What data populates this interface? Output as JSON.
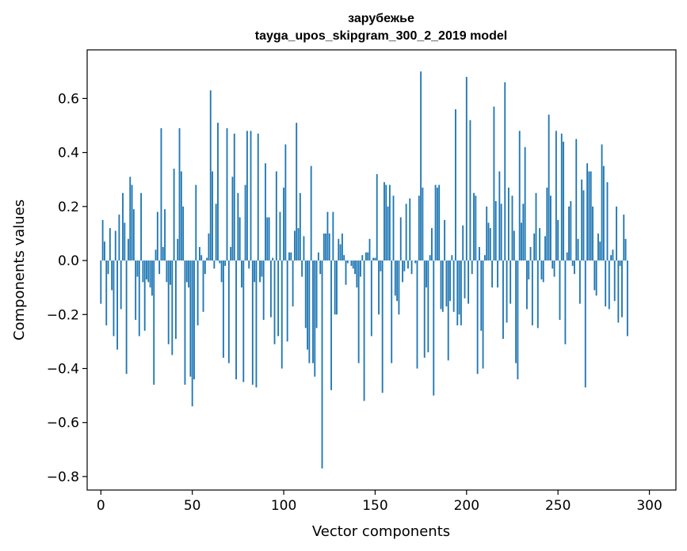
{
  "chart_data": {
    "type": "bar",
    "title": "зарубежье",
    "subtitle": "tayga_upos_skipgram_300_2_2019 model",
    "xlabel": "Vector components",
    "ylabel": "Components values",
    "xlim": [
      -7.5,
      314.5
    ],
    "ylim": [
      -0.85,
      0.78
    ],
    "xticks": [
      0,
      50,
      100,
      150,
      200,
      250,
      300
    ],
    "xtick_labels": [
      "0",
      "50",
      "100",
      "150",
      "200",
      "250",
      "300"
    ],
    "yticks": [
      -0.8,
      -0.6,
      -0.4,
      -0.2,
      0.0,
      0.2,
      0.4,
      0.6
    ],
    "ytick_labels": [
      "−0.8",
      "−0.6",
      "−0.4",
      "−0.2",
      "0.0",
      "0.2",
      "0.4",
      "0.6"
    ],
    "grid": false,
    "bar_color": "#1f77b4",
    "values": [
      -0.16,
      0.15,
      0.07,
      -0.24,
      -0.05,
      0.12,
      -0.11,
      -0.28,
      0.11,
      -0.33,
      0.17,
      -0.18,
      0.25,
      0.14,
      -0.42,
      0.08,
      0.31,
      0.28,
      0.19,
      -0.22,
      -0.06,
      -0.28,
      0.25,
      -0.08,
      -0.26,
      -0.07,
      -0.08,
      -0.1,
      -0.13,
      -0.46,
      0.04,
      0.18,
      -0.05,
      0.49,
      0.05,
      0.19,
      -0.08,
      -0.31,
      -0.09,
      -0.35,
      0.34,
      -0.29,
      0.08,
      0.49,
      0.33,
      0.2,
      -0.46,
      -0.08,
      -0.1,
      -0.43,
      -0.54,
      -0.44,
      0.28,
      -0.24,
      0.05,
      0.02,
      -0.19,
      -0.05,
      0.01,
      0.1,
      0.63,
      0.33,
      -0.03,
      0.21,
      0.51,
      -0.01,
      -0.08,
      -0.36,
      -0.02,
      0.49,
      -0.38,
      0.05,
      0.31,
      0.47,
      -0.44,
      0.25,
      0.16,
      -0.1,
      -0.45,
      0.28,
      0.48,
      -0.03,
      0.48,
      -0.46,
      -0.08,
      -0.47,
      0.47,
      -0.08,
      -0.06,
      -0.22,
      0.36,
      0.16,
      0.16,
      -0.21,
      0.01,
      -0.31,
      0.33,
      -0.28,
      0.18,
      -0.4,
      0.27,
      0.43,
      -0.3,
      0.03,
      0.03,
      -0.17,
      0.11,
      0.51,
      0.12,
      0.25,
      -0.06,
      0.09,
      -0.25,
      -0.33,
      -0.38,
      0.35,
      -0.38,
      -0.43,
      -0.25,
      0.03,
      -0.05,
      -0.77,
      0.1,
      0.1,
      0.18,
      0.1,
      -0.48,
      0.18,
      -0.2,
      -0.2,
      0.08,
      0.06,
      0.1,
      0.02,
      -0.09,
      -0.01,
      0.0,
      -0.02,
      -0.03,
      -0.05,
      -0.1,
      -0.38,
      -0.06,
      0.02,
      -0.52,
      0.03,
      0.03,
      0.08,
      -0.28,
      0.01,
      0.01,
      0.32,
      -0.2,
      -0.04,
      -0.49,
      0.29,
      0.28,
      0.2,
      0.28,
      -0.38,
      0.24,
      -0.13,
      -0.15,
      -0.2,
      0.16,
      -0.08,
      -0.04,
      0.21,
      -0.03,
      0.23,
      -0.05,
      0.0,
      -0.01,
      -0.4,
      0.24,
      0.7,
      0.27,
      -0.36,
      -0.1,
      -0.34,
      0.02,
      0.12,
      -0.5,
      0.28,
      0.27,
      0.28,
      -0.18,
      -0.19,
      0.15,
      -0.17,
      -0.37,
      -0.15,
      0.02,
      -0.19,
      0.56,
      -0.24,
      -0.2,
      -0.24,
      0.13,
      -0.14,
      0.68,
      -0.16,
      0.52,
      -0.05,
      0.25,
      0.24,
      -0.42,
      0.05,
      -0.26,
      -0.4,
      0.02,
      0.2,
      0.14,
      0.12,
      -0.1,
      0.57,
      0.22,
      -0.1,
      0.33,
      0.21,
      -0.29,
      0.66,
      -0.23,
      0.27,
      -0.16,
      0.24,
      0.11,
      -0.38,
      -0.44,
      0.48,
      0.14,
      0.21,
      0.42,
      -0.18,
      -0.07,
      0.05,
      -0.24,
      0.1,
      0.25,
      -0.25,
      0.12,
      -0.07,
      -0.08,
      0.09,
      0.27,
      0.54,
      0.24,
      -0.03,
      -0.06,
      0.48,
      0.15,
      -0.22,
      0.47,
      0.44,
      -0.31,
      0.03,
      0.2,
      0.22,
      -0.02,
      -0.05,
      0.45,
      0.08,
      -0.16,
      0.3,
      0.26,
      -0.47,
      0.36,
      0.33,
      0.33,
      0.2,
      -0.11,
      -0.13,
      0.1,
      0.07,
      0.43,
      0.35,
      -0.17,
      0.29,
      -0.18,
      0.02,
      0.04,
      -0.15,
      0.2,
      -0.23,
      -0.02,
      -0.21,
      0.17,
      0.08,
      -0.28
    ]
  }
}
